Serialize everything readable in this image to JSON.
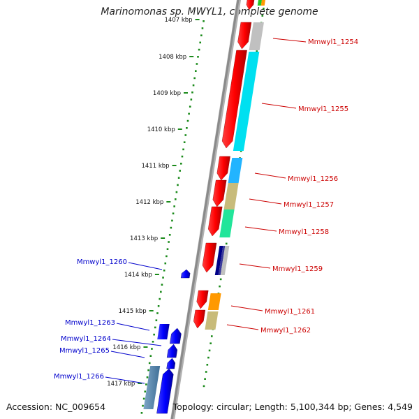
{
  "title": "Marinomonas sp. MWYL1, complete genome",
  "footer": {
    "accession": "Accession: NC_009654",
    "topology": "Topology: circular; Length: 5,100,344 bp; Genes: 4,549"
  },
  "colors": {
    "backbone": "#8a8a8a",
    "tick_dots": "#1a8a1a",
    "forward_gene": "#1010ff",
    "reverse_gene": "#ff0000",
    "forward_label": "#0000cc",
    "reverse_label": "#cc0000"
  },
  "ruler": {
    "unit": "kbp",
    "labels": [
      "1407 kbp",
      "1408 kbp",
      "1409 kbp",
      "1410 kbp",
      "1411 kbp",
      "1412 kbp",
      "1413 kbp",
      "1414 kbp",
      "1415 kbp",
      "1416 kbp",
      "1417 kbp"
    ]
  },
  "genes_reverse": [
    {
      "label": "Mmwyl1_1254",
      "cog_color": "#c0c0c0"
    },
    {
      "label": "Mmwyl1_1255",
      "cog_color": "#00e0f0"
    },
    {
      "label": "Mmwyl1_1256",
      "cog_color": "#22b4ff"
    },
    {
      "label": "Mmwyl1_1257",
      "cog_color": "#c8bb7a"
    },
    {
      "label": "Mmwyl1_1258",
      "cog_color": "#22e59a"
    },
    {
      "label": "Mmwyl1_1259",
      "cog_color": "#000088"
    },
    {
      "label": "Mmwyl1_1261",
      "cog_color": "#ff9900"
    },
    {
      "label": "Mmwyl1_1262",
      "cog_color": "#c8bb7a"
    }
  ],
  "genes_forward": [
    {
      "label": "Mmwyl1_1260"
    },
    {
      "label": "Mmwyl1_1263"
    },
    {
      "label": "Mmwyl1_1264"
    },
    {
      "label": "Mmwyl1_1265"
    },
    {
      "label": "Mmwyl1_1266"
    }
  ]
}
